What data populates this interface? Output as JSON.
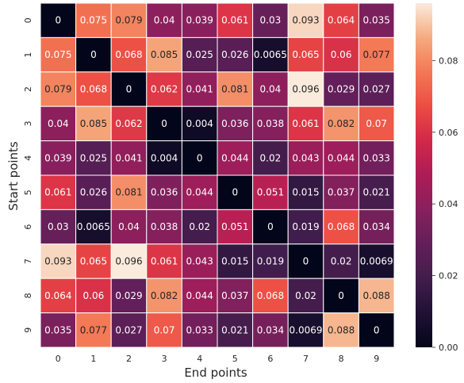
{
  "chart_data": {
    "type": "heatmap",
    "title": "",
    "xlabel": "End points",
    "ylabel": "Start points",
    "x_categories": [
      "0",
      "1",
      "2",
      "3",
      "4",
      "5",
      "6",
      "7",
      "8",
      "9"
    ],
    "y_categories": [
      "0",
      "1",
      "2",
      "3",
      "4",
      "5",
      "6",
      "7",
      "8",
      "9"
    ],
    "values": [
      [
        0,
        0.075,
        0.079,
        0.04,
        0.039,
        0.061,
        0.03,
        0.093,
        0.064,
        0.035
      ],
      [
        0.075,
        0,
        0.068,
        0.085,
        0.025,
        0.026,
        0.0065,
        0.065,
        0.06,
        0.077
      ],
      [
        0.079,
        0.068,
        0,
        0.062,
        0.041,
        0.081,
        0.04,
        0.096,
        0.029,
        0.027
      ],
      [
        0.04,
        0.085,
        0.062,
        0,
        0.004,
        0.036,
        0.038,
        0.061,
        0.082,
        0.07
      ],
      [
        0.039,
        0.025,
        0.041,
        0.004,
        0,
        0.044,
        0.02,
        0.043,
        0.044,
        0.033
      ],
      [
        0.061,
        0.026,
        0.081,
        0.036,
        0.044,
        0,
        0.051,
        0.015,
        0.037,
        0.021
      ],
      [
        0.03,
        0.0065,
        0.04,
        0.038,
        0.02,
        0.051,
        0,
        0.019,
        0.068,
        0.034
      ],
      [
        0.093,
        0.065,
        0.096,
        0.061,
        0.043,
        0.015,
        0.019,
        0,
        0.02,
        0.0069
      ],
      [
        0.064,
        0.06,
        0.029,
        0.082,
        0.044,
        0.037,
        0.068,
        0.02,
        0,
        0.088
      ],
      [
        0.035,
        0.077,
        0.027,
        0.07,
        0.033,
        0.021,
        0.034,
        0.0069,
        0.088,
        0
      ]
    ],
    "value_labels": [
      [
        "0",
        "0.075",
        "0.079",
        "0.04",
        "0.039",
        "0.061",
        "0.03",
        "0.093",
        "0.064",
        "0.035"
      ],
      [
        "0.075",
        "0",
        "0.068",
        "0.085",
        "0.025",
        "0.026",
        "0.0065",
        "0.065",
        "0.06",
        "0.077"
      ],
      [
        "0.079",
        "0.068",
        "0",
        "0.062",
        "0.041",
        "0.081",
        "0.04",
        "0.096",
        "0.029",
        "0.027"
      ],
      [
        "0.04",
        "0.085",
        "0.062",
        "0",
        "0.004",
        "0.036",
        "0.038",
        "0.061",
        "0.082",
        "0.07"
      ],
      [
        "0.039",
        "0.025",
        "0.041",
        "0.004",
        "0",
        "0.044",
        "0.02",
        "0.043",
        "0.044",
        "0.033"
      ],
      [
        "0.061",
        "0.026",
        "0.081",
        "0.036",
        "0.044",
        "0",
        "0.051",
        "0.015",
        "0.037",
        "0.021"
      ],
      [
        "0.03",
        "0.0065",
        "0.04",
        "0.038",
        "0.02",
        "0.051",
        "0",
        "0.019",
        "0.068",
        "0.034"
      ],
      [
        "0.093",
        "0.065",
        "0.096",
        "0.061",
        "0.043",
        "0.015",
        "0.019",
        "0",
        "0.02",
        "0.0069"
      ],
      [
        "0.064",
        "0.06",
        "0.029",
        "0.082",
        "0.044",
        "0.037",
        "0.068",
        "0.02",
        "0",
        "0.088"
      ],
      [
        "0.035",
        "0.077",
        "0.027",
        "0.07",
        "0.033",
        "0.021",
        "0.034",
        "0.0069",
        "0.088",
        "0"
      ]
    ],
    "vmin": 0,
    "vmax": 0.096,
    "colormap": "rocket",
    "colorbar": {
      "ticks": [
        0,
        0.02,
        0.04,
        0.06,
        0.08
      ],
      "tick_labels": [
        "0.00",
        "0.02",
        "0.04",
        "0.06",
        "0.08"
      ],
      "placement": "right"
    },
    "cell_border_color": "#ffffff",
    "grid": false
  }
}
